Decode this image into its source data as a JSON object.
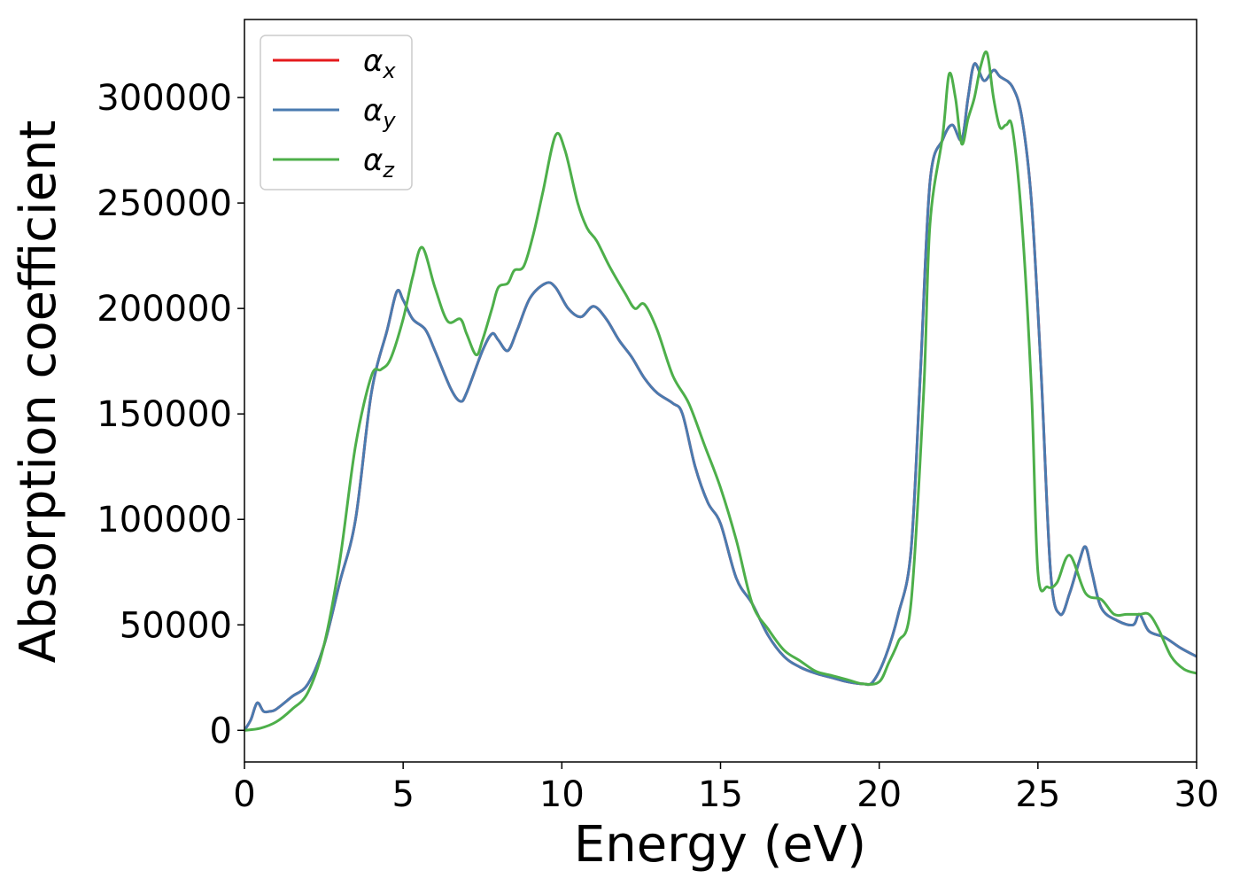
{
  "chart_data": {
    "type": "line",
    "xlabel": "Energy (eV)",
    "ylabel": "Absorption coefficient",
    "xlim": [
      0,
      30
    ],
    "ylim": [
      -15000,
      337000
    ],
    "xticks": [
      "0",
      "5",
      "10",
      "15",
      "20",
      "25",
      "30"
    ],
    "yticks": [
      "0",
      "50000",
      "100000",
      "150000",
      "200000",
      "250000",
      "300000"
    ],
    "grid": false,
    "legend_position": "top-left",
    "series": [
      {
        "name": "αx",
        "symbol": "α",
        "subscript": "x",
        "color": "#e41a1c",
        "x": [
          0,
          0.2,
          0.4,
          0.6,
          0.8,
          1.0,
          1.5,
          2.0,
          2.5,
          3.0,
          3.5,
          4.0,
          4.5,
          4.8,
          5.0,
          5.3,
          5.7,
          6.0,
          6.5,
          6.8,
          7.0,
          7.5,
          7.8,
          8.0,
          8.3,
          8.6,
          9.0,
          9.5,
          9.8,
          10.2,
          10.6,
          11.0,
          11.4,
          11.8,
          12.2,
          12.6,
          13.0,
          13.5,
          13.8,
          14.2,
          14.6,
          15.0,
          15.5,
          16.0,
          16.5,
          17.0,
          17.5,
          18.0,
          18.5,
          19.0,
          19.5,
          19.8,
          20.2,
          20.6,
          21.0,
          21.3,
          21.6,
          22.0,
          22.3,
          22.6,
          22.8,
          23.0,
          23.3,
          23.6,
          23.8,
          24.2,
          24.5,
          24.8,
          25.1,
          25.4,
          25.7,
          26.0,
          26.3,
          26.5,
          26.7,
          27.0,
          27.5,
          28.0,
          28.2,
          28.5,
          29.0,
          29.5,
          30.0
        ],
        "y": [
          0,
          5000,
          13000,
          9000,
          9000,
          10000,
          16000,
          22000,
          40000,
          70000,
          100000,
          160000,
          190000,
          208000,
          204000,
          195000,
          190000,
          180000,
          162000,
          156000,
          160000,
          180000,
          188000,
          185000,
          180000,
          190000,
          205000,
          212000,
          210000,
          200000,
          196000,
          201000,
          195000,
          185000,
          177000,
          167000,
          160000,
          155000,
          150000,
          125000,
          108000,
          98000,
          72000,
          60000,
          45000,
          35000,
          30000,
          27000,
          25000,
          23000,
          22000,
          23000,
          35000,
          55000,
          85000,
          170000,
          260000,
          280000,
          287000,
          280000,
          300000,
          316000,
          308000,
          313000,
          310000,
          305000,
          290000,
          250000,
          170000,
          75000,
          55000,
          65000,
          80000,
          87000,
          75000,
          58000,
          52000,
          50000,
          55000,
          47000,
          44000,
          39000,
          35000
        ]
      },
      {
        "name": "αy",
        "symbol": "α",
        "subscript": "y",
        "color": "#4a7bb0",
        "x": [
          0,
          0.2,
          0.4,
          0.6,
          0.8,
          1.0,
          1.5,
          2.0,
          2.5,
          3.0,
          3.5,
          4.0,
          4.5,
          4.8,
          5.0,
          5.3,
          5.7,
          6.0,
          6.5,
          6.8,
          7.0,
          7.5,
          7.8,
          8.0,
          8.3,
          8.6,
          9.0,
          9.5,
          9.8,
          10.2,
          10.6,
          11.0,
          11.4,
          11.8,
          12.2,
          12.6,
          13.0,
          13.5,
          13.8,
          14.2,
          14.6,
          15.0,
          15.5,
          16.0,
          16.5,
          17.0,
          17.5,
          18.0,
          18.5,
          19.0,
          19.5,
          19.8,
          20.2,
          20.6,
          21.0,
          21.3,
          21.6,
          22.0,
          22.3,
          22.6,
          22.8,
          23.0,
          23.3,
          23.6,
          23.8,
          24.2,
          24.5,
          24.8,
          25.1,
          25.4,
          25.7,
          26.0,
          26.3,
          26.5,
          26.7,
          27.0,
          27.5,
          28.0,
          28.2,
          28.5,
          29.0,
          29.5,
          30.0
        ],
        "y": [
          0,
          5000,
          13000,
          9000,
          9000,
          10000,
          16000,
          22000,
          40000,
          70000,
          100000,
          160000,
          190000,
          208000,
          204000,
          195000,
          190000,
          180000,
          162000,
          156000,
          160000,
          180000,
          188000,
          185000,
          180000,
          190000,
          205000,
          212000,
          210000,
          200000,
          196000,
          201000,
          195000,
          185000,
          177000,
          167000,
          160000,
          155000,
          150000,
          125000,
          108000,
          98000,
          72000,
          60000,
          45000,
          35000,
          30000,
          27000,
          25000,
          23000,
          22000,
          23000,
          35000,
          55000,
          85000,
          170000,
          260000,
          280000,
          287000,
          280000,
          300000,
          316000,
          308000,
          313000,
          310000,
          305000,
          290000,
          250000,
          170000,
          75000,
          55000,
          65000,
          80000,
          87000,
          75000,
          58000,
          52000,
          50000,
          55000,
          47000,
          44000,
          39000,
          35000
        ]
      },
      {
        "name": "αz",
        "symbol": "α",
        "subscript": "z",
        "color": "#4daf4a",
        "x": [
          0,
          0.5,
          1.0,
          1.5,
          2.0,
          2.5,
          3.0,
          3.5,
          4.0,
          4.3,
          4.6,
          5.0,
          5.3,
          5.6,
          6.0,
          6.4,
          6.8,
          7.0,
          7.3,
          7.5,
          7.8,
          8.0,
          8.3,
          8.5,
          8.8,
          9.1,
          9.4,
          9.8,
          10.1,
          10.5,
          10.8,
          11.1,
          11.5,
          12.0,
          12.3,
          12.6,
          13.0,
          13.5,
          14.0,
          14.5,
          15.0,
          15.5,
          16.0,
          16.5,
          17.0,
          17.5,
          18.0,
          18.5,
          19.0,
          19.5,
          20.0,
          20.3,
          20.6,
          21.0,
          21.4,
          21.6,
          22.0,
          22.2,
          22.4,
          22.6,
          22.8,
          23.0,
          23.2,
          23.4,
          23.6,
          23.8,
          24.0,
          24.2,
          24.5,
          24.8,
          25.0,
          25.3,
          25.6,
          26.0,
          26.5,
          27.0,
          27.4,
          27.8,
          28.2,
          28.5,
          28.8,
          29.2,
          29.6,
          30.0
        ],
        "y": [
          0,
          1000,
          4000,
          10000,
          18000,
          40000,
          80000,
          135000,
          168000,
          171000,
          176000,
          195000,
          215000,
          229000,
          210000,
          194000,
          195000,
          188000,
          178000,
          185000,
          200000,
          210000,
          212000,
          218000,
          220000,
          235000,
          255000,
          282000,
          275000,
          250000,
          238000,
          232000,
          220000,
          207000,
          200000,
          202000,
          190000,
          168000,
          155000,
          135000,
          115000,
          90000,
          60000,
          48000,
          38000,
          33000,
          28000,
          26000,
          24000,
          22000,
          23000,
          32000,
          42000,
          60000,
          160000,
          240000,
          282000,
          311000,
          300000,
          278000,
          290000,
          300000,
          315000,
          321000,
          300000,
          286000,
          287000,
          285000,
          240000,
          160000,
          75000,
          68000,
          70000,
          83000,
          65000,
          62000,
          55000,
          55000,
          55000,
          55000,
          48000,
          35000,
          29000,
          27000
        ]
      }
    ]
  }
}
